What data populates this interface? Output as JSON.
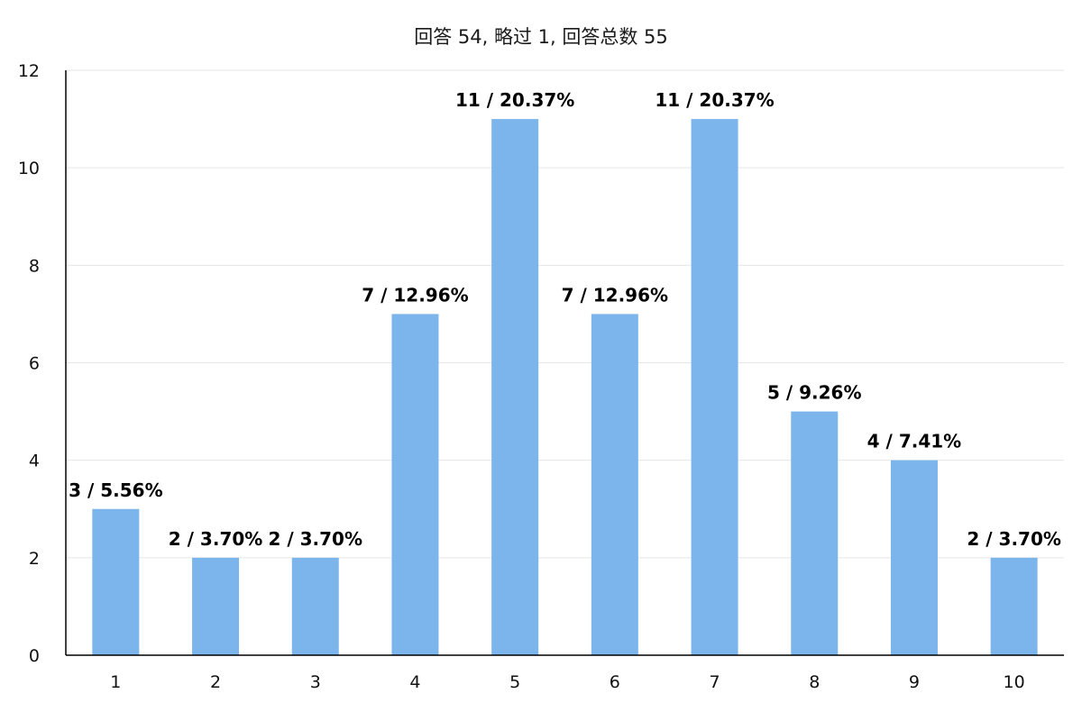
{
  "chart_data": {
    "type": "bar",
    "title": "回答 54, 略过 1, 回答总数 55",
    "categories": [
      "1",
      "2",
      "3",
      "4",
      "5",
      "6",
      "7",
      "8",
      "9",
      "10"
    ],
    "values": [
      3,
      2,
      2,
      7,
      11,
      7,
      11,
      5,
      4,
      2
    ],
    "data_labels": [
      "3 / 5.56%",
      "2 / 3.70%",
      "2 / 3.70%",
      "7 / 12.96%",
      "11 / 20.37%",
      "7 / 12.96%",
      "11 / 20.37%",
      "5 / 9.26%",
      "4 / 7.41%",
      "2 / 3.70%"
    ],
    "y_ticks": [
      "0",
      "2",
      "4",
      "6",
      "8",
      "10",
      "12"
    ],
    "ylim": [
      0,
      12
    ],
    "grid": true,
    "legend": "none",
    "bar_color": "#7cb5ec"
  }
}
